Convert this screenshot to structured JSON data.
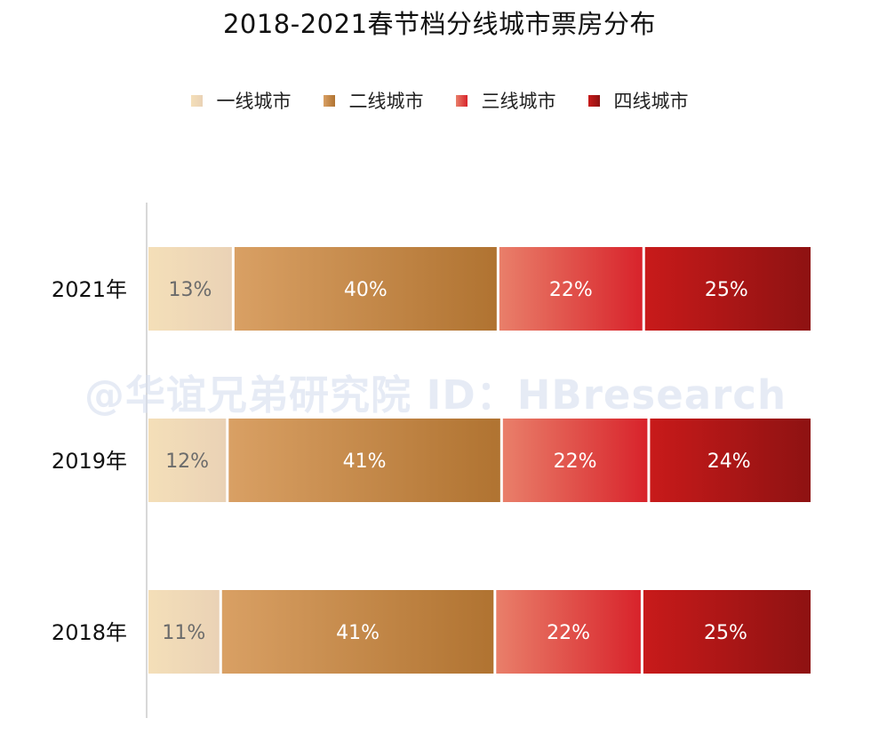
{
  "chart_data": {
    "type": "bar",
    "orientation": "horizontal",
    "stacked": true,
    "title": "2018-2021春节档分线城市票房分布",
    "categories": [
      "2021年",
      "2019年",
      "2018年"
    ],
    "series": [
      {
        "name": "一线城市",
        "values": [
          13,
          12,
          11
        ],
        "labels": [
          "13%",
          "12%",
          "11%"
        ],
        "color_start": "#f4dfb8",
        "color_end": "#ead2b6"
      },
      {
        "name": "二线城市",
        "values": [
          40,
          41,
          41
        ],
        "labels": [
          "40%",
          "41%",
          "41%"
        ],
        "color_start": "#d9a064",
        "color_end": "#b07331"
      },
      {
        "name": "三线城市",
        "values": [
          22,
          22,
          22
        ],
        "labels": [
          "22%",
          "22%",
          "22%"
        ],
        "color_start": "#e97f6a",
        "color_end": "#d8232b"
      },
      {
        "name": "四线城市",
        "values": [
          25,
          24,
          25
        ],
        "labels": [
          "25%",
          "24%",
          "25%"
        ],
        "color_start": "#c81a1a",
        "color_end": "#8e1212"
      }
    ],
    "xlim": [
      0,
      100
    ],
    "grid": false,
    "legend_position": "top"
  },
  "watermark": "@华谊兄弟研究院 ID：HBresearch"
}
